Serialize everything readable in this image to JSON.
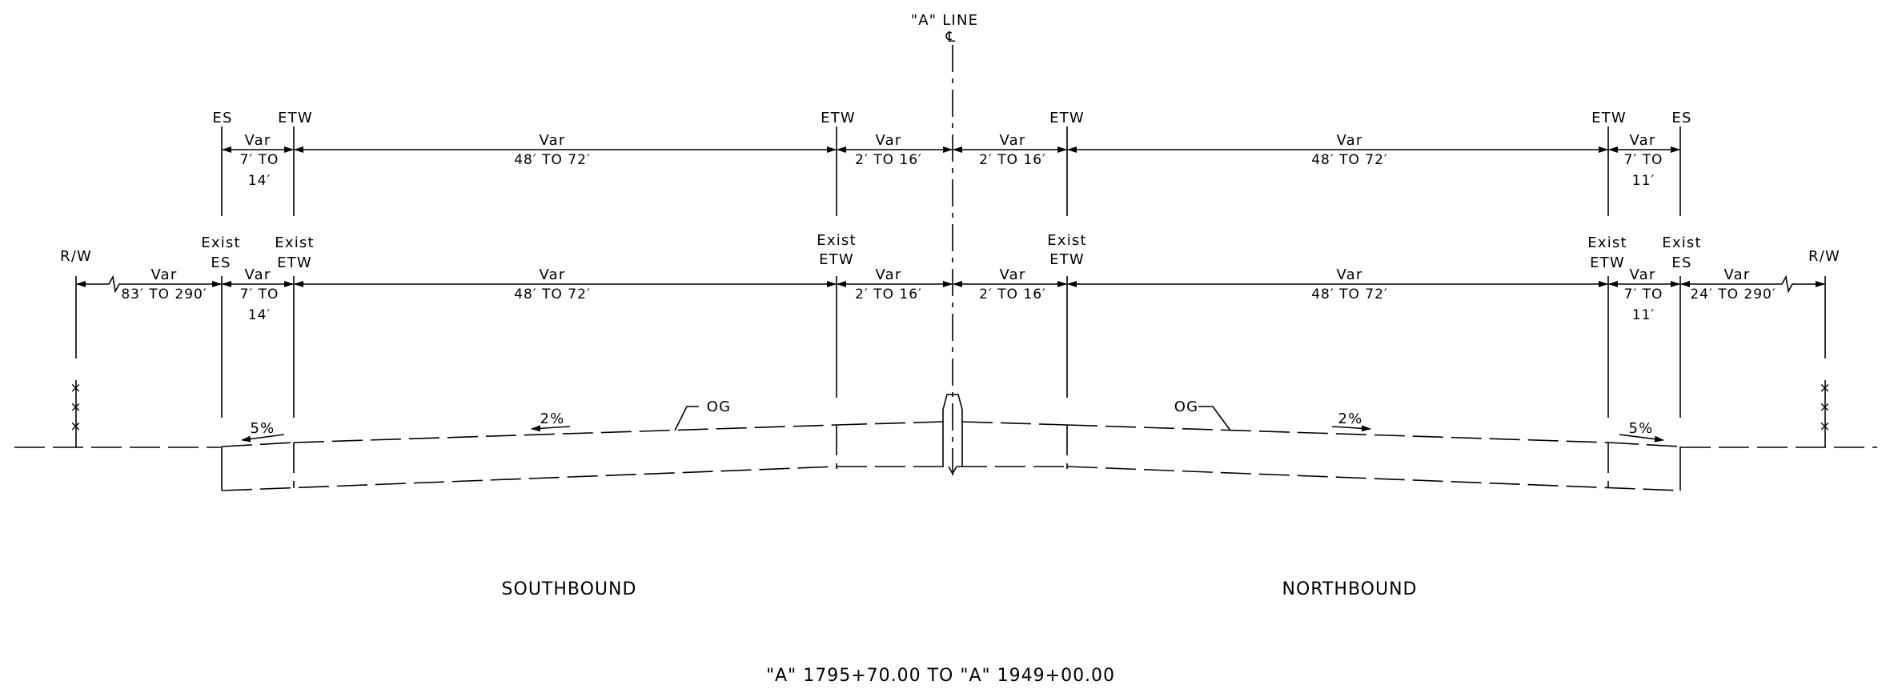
{
  "centerline": {
    "label": "\"A\" LINE",
    "symbol": "℄"
  },
  "upper_row": {
    "labels": {
      "left_es": "ES",
      "left_etw": "ETW",
      "median_left_etw": "ETW",
      "median_right_etw": "ETW",
      "right_etw": "ETW",
      "right_es": "ES"
    },
    "dims": [
      {
        "var": "Var",
        "range": "7′ TO",
        "range2": "14′"
      },
      {
        "var": "Var",
        "range": "48′ TO 72′"
      },
      {
        "var": "Var",
        "range": "2′ TO 16′"
      },
      {
        "var": "Var",
        "range": "2′ TO 16′"
      },
      {
        "var": "Var",
        "range": "48′ TO 72′"
      },
      {
        "var": "Var",
        "range": "7′ TO",
        "range2": "11′"
      }
    ]
  },
  "lower_row": {
    "labels": {
      "left_rw": "R/W",
      "left_exist_es_1": "Exist",
      "left_exist_es_2": "ES",
      "left_exist_etw_1": "Exist",
      "left_exist_etw_2": "ETW",
      "median_left_1": "Exist",
      "median_left_2": "ETW",
      "median_right_1": "Exist",
      "median_right_2": "ETW",
      "right_exist_etw_1": "Exist",
      "right_exist_etw_2": "ETW",
      "right_exist_es_1": "Exist",
      "right_exist_es_2": "ES",
      "right_rw": "R/W"
    },
    "dims": [
      {
        "var": "Var",
        "range": "83′ TO 290′"
      },
      {
        "var": "Var",
        "range": "7′ TO",
        "range2": "14′"
      },
      {
        "var": "Var",
        "range": "48′ TO 72′"
      },
      {
        "var": "Var",
        "range": "2′ TO 16′"
      },
      {
        "var": "Var",
        "range": "2′ TO 16′"
      },
      {
        "var": "Var",
        "range": "48′ TO 72′"
      },
      {
        "var": "Var",
        "range": "7′ TO",
        "range2": "11′"
      },
      {
        "var": "Var",
        "range": "24′ TO 290′"
      }
    ]
  },
  "section": {
    "og_left": "OG",
    "og_right": "OG",
    "slope_left_shoulder": "5%",
    "slope_left_lanes": "2%",
    "slope_right_lanes": "2%",
    "slope_right_shoulder": "5%"
  },
  "captions": {
    "southbound": "SOUTHBOUND",
    "northbound": "NORTHBOUND",
    "station_range": "\"A\" 1795+70.00 TO \"A\" 1949+00.00"
  }
}
